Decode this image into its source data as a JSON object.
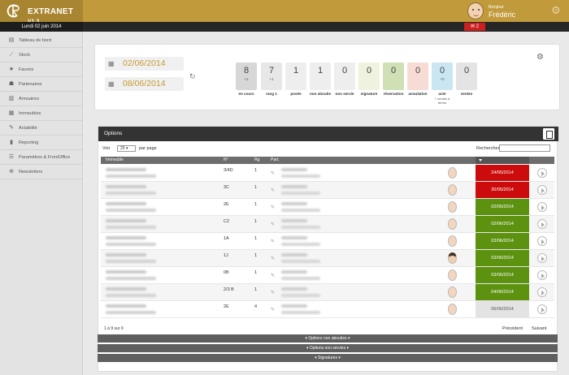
{
  "brand": {
    "name": "EXTRANET",
    "version": "V1.3"
  },
  "user": {
    "greeting": "Bonjour",
    "name": "Frédéric"
  },
  "topbar": {
    "date": "Lundi 02 juin 2014",
    "mail_count": "2"
  },
  "sidebar": {
    "items": [
      {
        "label": "Tableau de bord",
        "icon": "dashboard-icon"
      },
      {
        "label": "Stock",
        "icon": "chart-icon"
      },
      {
        "label": "Favoris",
        "icon": "star-icon"
      },
      {
        "label": "Partenaires",
        "icon": "users-icon"
      },
      {
        "label": "Annuaires",
        "icon": "book-icon"
      },
      {
        "label": "Immeubles",
        "icon": "building-icon"
      },
      {
        "label": "Actabilité",
        "icon": "pencil-icon"
      },
      {
        "label": "Reporting",
        "icon": "report-icon"
      },
      {
        "label": "Paramètres & FrontOffice",
        "icon": "wifi-icon"
      },
      {
        "label": "Newsletters",
        "icon": "globe-icon"
      }
    ]
  },
  "filters": {
    "date_from": "02/06/2014",
    "date_to": "08/06/2014"
  },
  "stats": [
    {
      "value": "8",
      "sub": "+1",
      "label": "en cours",
      "color": "#d7d7d7"
    },
    {
      "value": "7",
      "sub": "+1",
      "label": "rang 1",
      "color": "#e7e7e7"
    },
    {
      "value": "1",
      "sub": "",
      "label": "posée",
      "color": "#eeeeee"
    },
    {
      "value": "1",
      "sub": "",
      "label": "non aboutie",
      "color": "#eeeeee"
    },
    {
      "value": "0",
      "sub": "",
      "label": "non servie",
      "color": "#eeeeee"
    },
    {
      "value": "0",
      "sub": "",
      "label": "signature",
      "color": "#eef2df"
    },
    {
      "value": "0",
      "sub": "",
      "label": "réservation",
      "color": "#cfe0b5"
    },
    {
      "value": "0",
      "sub": "",
      "label": "annulation",
      "color": "#f7dcd6"
    },
    {
      "value": "0",
      "sub": "+0",
      "label": "acte",
      "color": "#cbe6f3",
      "extra1": "+ ventes à",
      "extra2": "terme"
    },
    {
      "value": "0",
      "sub": "",
      "label": "ventes",
      "color": "#e4e4e4"
    }
  ],
  "options_panel": {
    "title": "Options",
    "show_prefix": "Voir",
    "per_page_value": "25",
    "show_suffix": "par page",
    "search_label": "Rechercher",
    "columns": {
      "immeuble": "Immeuble",
      "num": "N°",
      "rg": "Rg",
      "part": "Part."
    },
    "rows": [
      {
        "num": "3/4D",
        "rg": "1",
        "date": "24/05/2014",
        "status": "red",
        "avatar": "light"
      },
      {
        "num": "3C",
        "rg": "1",
        "date": "30/05/2014",
        "status": "red",
        "avatar": "light"
      },
      {
        "num": "2E",
        "rg": "1",
        "date": "02/06/2014",
        "status": "green",
        "avatar": "light"
      },
      {
        "num": "C2",
        "rg": "1",
        "date": "02/06/2014",
        "status": "green",
        "avatar": "light"
      },
      {
        "num": "1A",
        "rg": "1",
        "date": "03/06/2014",
        "status": "green",
        "avatar": "light"
      },
      {
        "num": "1J",
        "rg": "1",
        "date": "03/06/2014",
        "status": "green",
        "avatar": "dark"
      },
      {
        "num": "0B",
        "rg": "1",
        "date": "03/06/2014",
        "status": "green",
        "avatar": "light"
      },
      {
        "num": "2/3 B",
        "rg": "1",
        "date": "04/06/2014",
        "status": "green",
        "avatar": "light"
      },
      {
        "num": "2E",
        "rg": "4",
        "date": "06/06/2014",
        "status": "gray",
        "avatar": "light"
      }
    ],
    "info": "1 à 9 sur 9",
    "prev": "Précédent",
    "next": "Suivant"
  },
  "sections": [
    "Options non abouties",
    "Options non servies",
    "Signatures"
  ],
  "colors": {
    "gold": "#c19a3b",
    "red": "#cc0c0c",
    "green": "#5d9210"
  }
}
